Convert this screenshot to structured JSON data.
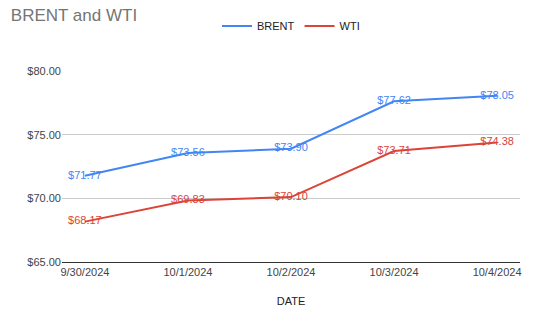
{
  "chart_data": {
    "type": "line",
    "title": "BRENT and WTI",
    "x_label": "DATE",
    "categories": [
      "9/30/2024",
      "10/1/2024",
      "10/2/2024",
      "10/3/2024",
      "10/4/2024"
    ],
    "series": [
      {
        "name": "BRENT",
        "color": "#4285f4",
        "values": [
          71.77,
          73.56,
          73.9,
          77.62,
          78.05
        ],
        "value_labels": [
          "$71.77",
          "$73.56",
          "$73.90",
          "$77.62",
          "$78.05"
        ]
      },
      {
        "name": "WTI",
        "color": "#db4437",
        "values": [
          68.17,
          69.83,
          70.1,
          73.71,
          74.38
        ],
        "value_labels": [
          "$68.17",
          "$69.83",
          "$70.10",
          "$73.71",
          "$74.38"
        ]
      }
    ],
    "ylim": [
      65,
      80
    ],
    "yticks": [
      {
        "value": 65,
        "label": "$65.00"
      },
      {
        "value": 70,
        "label": "$70.00"
      },
      {
        "value": 75,
        "label": "$75.00"
      },
      {
        "value": 80,
        "label": "$80.00"
      }
    ],
    "grid": true,
    "legend": "top",
    "data_labels": true
  }
}
